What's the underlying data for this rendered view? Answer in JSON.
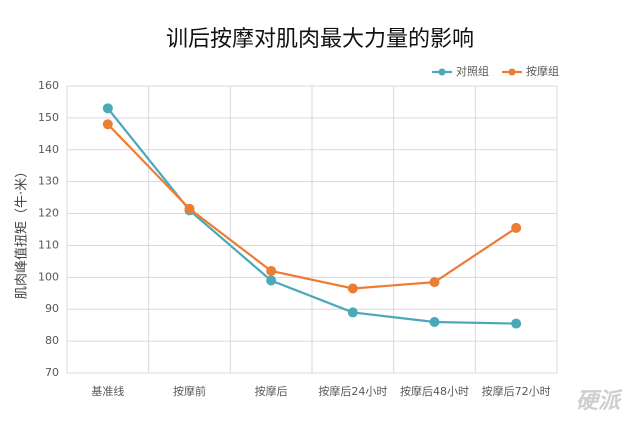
{
  "chart_data": {
    "type": "line",
    "title": "训后按摩对肌肉最大力量的影响",
    "y_label": "肌肉峰值扭矩（牛·米）",
    "categories": [
      "基准线",
      "按摩前",
      "按摩后",
      "按摩后24小时",
      "按摩后48小时",
      "按摩后72小时"
    ],
    "series": [
      {
        "name": "对照组",
        "color": "#4aa8b9",
        "values": [
          153,
          121,
          99,
          89,
          86,
          85.5
        ]
      },
      {
        "name": "按摩组",
        "color": "#ec7d35",
        "values": [
          148,
          121.5,
          102,
          96.5,
          98.5,
          115.5
        ]
      }
    ],
    "ylim": [
      70,
      160
    ],
    "yticks": [
      70,
      80,
      90,
      100,
      110,
      120,
      130,
      140,
      150,
      160
    ],
    "grid": true,
    "legend": "top-right",
    "watermark": "硬派"
  }
}
